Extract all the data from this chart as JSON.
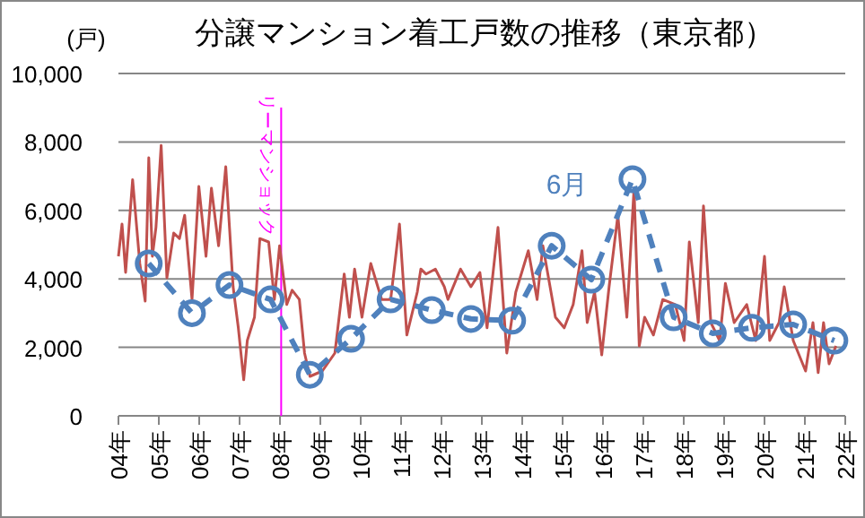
{
  "chart_data": {
    "type": "line",
    "title": "分譲マンション着工戸数の推移（東京都）",
    "ylabel": "(戸)",
    "xlim": [
      4,
      22
    ],
    "ylim": [
      0,
      10000
    ],
    "yticks": [
      {
        "value": 0,
        "label": "0"
      },
      {
        "value": 2000,
        "label": "2,000"
      },
      {
        "value": 4000,
        "label": "4,000"
      },
      {
        "value": 6000,
        "label": "6,000"
      },
      {
        "value": 8000,
        "label": "8,000"
      },
      {
        "value": 10000,
        "label": "10,000"
      }
    ],
    "xticks": [
      {
        "value": 4,
        "label": "04年"
      },
      {
        "value": 5,
        "label": "05年"
      },
      {
        "value": 6,
        "label": "06年"
      },
      {
        "value": 7,
        "label": "07年"
      },
      {
        "value": 8,
        "label": "08年"
      },
      {
        "value": 9,
        "label": "09年"
      },
      {
        "value": 10,
        "label": "10年"
      },
      {
        "value": 11,
        "label": "11年"
      },
      {
        "value": 12,
        "label": "12年"
      },
      {
        "value": 13,
        "label": "13年"
      },
      {
        "value": 14,
        "label": "14年"
      },
      {
        "value": 15,
        "label": "15年"
      },
      {
        "value": 16,
        "label": "16年"
      },
      {
        "value": 17,
        "label": "17年"
      },
      {
        "value": 18,
        "label": "18年"
      },
      {
        "value": 19,
        "label": "19年"
      },
      {
        "value": 20,
        "label": "20年"
      },
      {
        "value": 21,
        "label": "21年"
      },
      {
        "value": 22,
        "label": "22年"
      }
    ],
    "grid": "y",
    "series": [
      {
        "color": "#c0504d",
        "marker": "none",
        "line_style": "solid",
        "x": [
          4.0,
          4.09,
          4.18,
          4.35,
          4.53,
          4.66,
          4.75,
          4.84,
          4.93,
          5.06,
          5.2,
          5.37,
          5.51,
          5.64,
          5.82,
          5.99,
          6.17,
          6.3,
          6.48,
          6.66,
          6.84,
          6.97,
          7.1,
          7.19,
          7.37,
          7.5,
          7.72,
          7.86,
          7.99,
          8.17,
          8.3,
          8.48,
          8.61,
          8.74,
          9.05,
          9.36,
          9.59,
          9.72,
          9.85,
          10.03,
          10.25,
          10.52,
          10.74,
          10.96,
          11.14,
          11.4,
          11.49,
          11.62,
          11.85,
          12.07,
          12.16,
          12.47,
          12.73,
          12.95,
          13.13,
          13.4,
          13.62,
          13.84,
          14.15,
          14.37,
          14.51,
          14.82,
          15.04,
          15.26,
          15.48,
          15.61,
          15.79,
          15.97,
          16.15,
          16.37,
          16.59,
          16.77,
          16.9,
          17.03,
          17.25,
          17.48,
          17.79,
          18.01,
          18.14,
          18.36,
          18.49,
          18.67,
          18.89,
          19.03,
          19.25,
          19.56,
          19.78,
          20.0,
          20.13,
          20.36,
          20.49,
          20.71,
          21.02,
          21.2,
          21.33,
          21.46,
          21.6,
          21.77
        ],
        "values": [
          4660,
          5600,
          4190,
          6900,
          4450,
          3350,
          7540,
          4660,
          5500,
          7900,
          4030,
          5340,
          5180,
          5860,
          3400,
          6700,
          4660,
          6650,
          4970,
          7280,
          3770,
          2570,
          1050,
          2200,
          2880,
          5180,
          5080,
          3400,
          4970,
          3250,
          3670,
          3400,
          1830,
          1150,
          1310,
          1830,
          4140,
          2880,
          4290,
          2880,
          4450,
          3400,
          3400,
          5600,
          2360,
          3610,
          4290,
          4140,
          4290,
          3770,
          3400,
          4290,
          3770,
          4190,
          2570,
          5500,
          1830,
          3610,
          4820,
          3400,
          4970,
          2880,
          2570,
          3250,
          4820,
          2720,
          3610,
          1780,
          3770,
          5860,
          2880,
          6650,
          2040,
          2880,
          2360,
          3400,
          3250,
          2200,
          5080,
          2720,
          6130,
          2720,
          2200,
          3870,
          2720,
          3250,
          2200,
          4660,
          2200,
          2720,
          3770,
          2200,
          1310,
          2720,
          1260,
          2720,
          1520,
          2040
        ]
      },
      {
        "color": "#4f81bd",
        "marker": "circle",
        "line_style": "dashed",
        "x": [
          4.75,
          5.82,
          6.75,
          7.77,
          8.74,
          9.76,
          10.74,
          11.76,
          12.73,
          13.75,
          14.73,
          15.71,
          16.73,
          17.75,
          18.72,
          19.69,
          20.71,
          21.73
        ],
        "values": [
          4450,
          3000,
          3820,
          3400,
          1200,
          2250,
          3400,
          3090,
          2830,
          2780,
          4970,
          3980,
          6910,
          2880,
          2410,
          2570,
          2670,
          2200
        ]
      }
    ],
    "ref_lines": [
      {
        "axis": "x",
        "value": 8.03,
        "label": "リーマンショック",
        "color": "#ff00ff"
      }
    ],
    "annotations": [
      "6月"
    ]
  }
}
